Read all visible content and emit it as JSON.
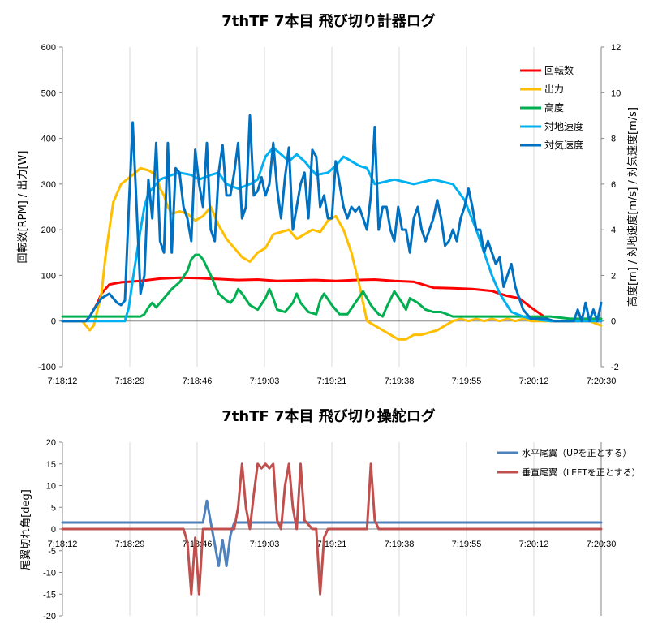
{
  "chart_data": [
    {
      "type": "line",
      "title": "7thTF 7本目 飛び切り計器ログ",
      "ylabel": "回転数[RPM] / 出力[W]",
      "y2label": "高度[m] / 対地速度[m/s] / 対気速度[m/s]",
      "xlabel": "",
      "x_ticks": [
        "7:18:12",
        "7:18:29",
        "7:18:46",
        "7:19:03",
        "7:19:21",
        "7:19:38",
        "7:19:55",
        "7:20:12",
        "7:20:30"
      ],
      "x_range_seconds": [
        0,
        138
      ],
      "ylim": [
        -100,
        600
      ],
      "y_ticks": [
        -100,
        0,
        100,
        200,
        300,
        400,
        500,
        600
      ],
      "y2lim": [
        -2,
        12
      ],
      "y2_ticks": [
        -2,
        0,
        2,
        4,
        6,
        8,
        10,
        12
      ],
      "grid": "vertical",
      "legend": "top-right",
      "series": [
        {
          "name": "回転数",
          "color": "#ff0000",
          "axis": "left",
          "x": [
            0,
            6,
            7,
            8,
            9,
            10,
            11,
            12,
            15,
            20,
            25,
            30,
            35,
            40,
            45,
            50,
            55,
            60,
            65,
            70,
            75,
            80,
            85,
            90,
            95,
            100,
            105,
            110,
            111,
            112,
            114,
            117,
            120,
            125,
            130,
            138
          ],
          "y": [
            0,
            0,
            10,
            25,
            40,
            60,
            70,
            80,
            85,
            88,
            93,
            95,
            94,
            92,
            90,
            91,
            88,
            89,
            90,
            88,
            90,
            91,
            88,
            86,
            73,
            72,
            70,
            66,
            63,
            60,
            55,
            50,
            30,
            0,
            0,
            0
          ]
        },
        {
          "name": "出力",
          "color": "#ffbf00",
          "axis": "left",
          "x": [
            0,
            5,
            6,
            7,
            8,
            10,
            11,
            12,
            13,
            15,
            18,
            20,
            22,
            24,
            25,
            26,
            27,
            28,
            30,
            32,
            34,
            36,
            38,
            40,
            42,
            44,
            46,
            48,
            50,
            52,
            54,
            56,
            58,
            60,
            62,
            64,
            66,
            68,
            70,
            72,
            74,
            76,
            78,
            80,
            82,
            84,
            86,
            88,
            90,
            92,
            94,
            96,
            98,
            100,
            102,
            104,
            106,
            108,
            110,
            112,
            114,
            116,
            118,
            120,
            125,
            130,
            135,
            138
          ],
          "y": [
            0,
            0,
            -10,
            -20,
            -10,
            60,
            140,
            200,
            260,
            300,
            320,
            335,
            330,
            320,
            290,
            275,
            250,
            235,
            240,
            235,
            220,
            230,
            250,
            210,
            180,
            160,
            140,
            130,
            150,
            160,
            190,
            195,
            200,
            180,
            190,
            200,
            195,
            220,
            230,
            200,
            150,
            80,
            0,
            -10,
            -20,
            -30,
            -40,
            -40,
            -30,
            -30,
            -25,
            -20,
            -10,
            0,
            5,
            0,
            5,
            0,
            5,
            0,
            5,
            0,
            5,
            0,
            0,
            0,
            0,
            -10
          ]
        },
        {
          "name": "高度",
          "color": "#00b050",
          "axis": "right",
          "x": [
            0,
            10,
            15,
            20,
            21,
            22,
            23,
            24,
            26,
            28,
            30,
            32,
            33,
            34,
            35,
            36,
            38,
            40,
            42,
            43,
            44,
            45,
            46,
            48,
            50,
            52,
            53,
            54,
            55,
            57,
            59,
            60,
            61,
            63,
            65,
            66,
            67,
            69,
            71,
            73,
            75,
            77,
            79,
            81,
            82,
            83,
            85,
            87,
            88,
            89,
            91,
            93,
            95,
            97,
            100,
            105,
            110,
            115,
            120,
            125,
            130,
            138
          ],
          "y": [
            0.2,
            0.2,
            0.2,
            0.2,
            0.3,
            0.6,
            0.8,
            0.6,
            1.0,
            1.4,
            1.7,
            2.2,
            2.7,
            2.9,
            2.9,
            2.7,
            2.0,
            1.2,
            0.9,
            0.8,
            1.0,
            1.4,
            1.2,
            0.7,
            0.5,
            1.0,
            1.4,
            1.0,
            0.5,
            0.4,
            0.8,
            1.2,
            0.8,
            0.4,
            0.3,
            0.9,
            1.2,
            0.7,
            0.3,
            0.3,
            0.8,
            1.3,
            0.7,
            0.3,
            0.2,
            0.6,
            1.3,
            0.8,
            0.5,
            1.0,
            0.8,
            0.5,
            0.4,
            0.4,
            0.2,
            0.2,
            0.2,
            0.2,
            0.2,
            0.2,
            0.1,
            0.1
          ]
        },
        {
          "name": "対地速度",
          "color": "#00b0f0",
          "axis": "right",
          "x": [
            0,
            14,
            16,
            17,
            18,
            20,
            21,
            22,
            25,
            28,
            30,
            33,
            35,
            38,
            40,
            42,
            45,
            48,
            50,
            52,
            54,
            56,
            58,
            60,
            62,
            65,
            68,
            70,
            72,
            74,
            76,
            78,
            80,
            85,
            90,
            95,
            100,
            103,
            106,
            108,
            110,
            112,
            115,
            118,
            120,
            125,
            130,
            138
          ],
          "y": [
            0,
            0,
            0,
            0.6,
            1.8,
            4.0,
            5.0,
            5.6,
            6.2,
            6.4,
            6.5,
            6.4,
            6.2,
            6.4,
            6.5,
            6.0,
            5.8,
            6.0,
            6.2,
            7.2,
            7.6,
            7.3,
            7.0,
            7.3,
            7.0,
            6.4,
            6.5,
            6.8,
            7.2,
            7.0,
            6.8,
            6.7,
            6.0,
            6.2,
            6.0,
            6.2,
            6.0,
            5.3,
            4.0,
            3.0,
            2.0,
            1.2,
            0.4,
            0.2,
            0.1,
            0,
            0,
            0
          ]
        },
        {
          "name": "対気速度",
          "color": "#0070c0",
          "axis": "right",
          "x": [
            0,
            6,
            7,
            8,
            10,
            12,
            13,
            14,
            15,
            16,
            17,
            18,
            19,
            20,
            21,
            22,
            23,
            24,
            25,
            26,
            27,
            28,
            29,
            30,
            31,
            32,
            33,
            34,
            35,
            36,
            37,
            38,
            39,
            40,
            41,
            42,
            43,
            44,
            45,
            46,
            47,
            48,
            49,
            50,
            51,
            52,
            53,
            54,
            55,
            56,
            57,
            58,
            59,
            60,
            61,
            62,
            63,
            64,
            65,
            66,
            67,
            68,
            69,
            70,
            71,
            72,
            73,
            74,
            75,
            76,
            77,
            78,
            79,
            80,
            81,
            82,
            83,
            84,
            85,
            86,
            87,
            88,
            89,
            90,
            91,
            92,
            93,
            94,
            95,
            96,
            97,
            98,
            99,
            100,
            101,
            102,
            103,
            104,
            105,
            106,
            107,
            108,
            109,
            110,
            111,
            112,
            113,
            114,
            115,
            116,
            117,
            118,
            120,
            122,
            124,
            126,
            128,
            130,
            131,
            132,
            133,
            134,
            135,
            136,
            137,
            138
          ],
          "y": [
            0,
            0,
            0.2,
            0.5,
            1.0,
            1.2,
            1.0,
            0.8,
            0.7,
            0.9,
            5.0,
            8.7,
            5.0,
            1.2,
            2.0,
            6.2,
            4.5,
            7.8,
            3.5,
            3.0,
            7.8,
            3.0,
            6.7,
            6.5,
            5.0,
            4.5,
            3.5,
            7.5,
            6.0,
            5.0,
            7.8,
            4.0,
            3.5,
            6.5,
            7.7,
            5.5,
            5.5,
            6.5,
            7.8,
            4.5,
            5.0,
            9.0,
            5.5,
            5.7,
            6.3,
            5.5,
            6.0,
            7.8,
            5.8,
            4.5,
            6.3,
            7.6,
            4.0,
            5.0,
            6.0,
            6.5,
            4.5,
            7.5,
            7.2,
            5.0,
            5.5,
            4.5,
            4.5,
            7.0,
            6.0,
            5.0,
            4.5,
            5.0,
            4.8,
            5.0,
            4.5,
            4.0,
            5.5,
            8.5,
            4.0,
            5.0,
            5.0,
            4.0,
            3.5,
            5.0,
            4.0,
            4.0,
            3.0,
            4.5,
            5.0,
            4.0,
            3.5,
            4.0,
            4.5,
            5.3,
            4.5,
            3.3,
            3.5,
            4.0,
            3.5,
            4.5,
            5.0,
            5.8,
            5.0,
            4.0,
            4.0,
            3.0,
            3.5,
            3.0,
            2.5,
            2.8,
            1.5,
            2.0,
            2.5,
            1.5,
            1.0,
            0.5,
            0.1,
            0.1,
            0.1,
            0,
            0,
            0,
            0,
            0.5,
            0,
            0.8,
            0,
            0.5,
            0,
            0.8
          ]
        }
      ]
    },
    {
      "type": "line",
      "title": "7thTF 7本目 飛び切り操舵ログ",
      "ylabel": "尾翼切れ角[deg]",
      "xlabel": "",
      "x_ticks": [
        "7:18:12",
        "7:18:29",
        "7:18:46",
        "7:19:03",
        "7:19:21",
        "7:19:38",
        "7:19:55",
        "7:20:12",
        "7:20:30"
      ],
      "x_range_seconds": [
        0,
        138
      ],
      "ylim": [
        -20,
        20
      ],
      "y_ticks": [
        -20,
        -15,
        -10,
        -5,
        0,
        5,
        10,
        15,
        20
      ],
      "grid": "vertical",
      "legend": "top-right",
      "series": [
        {
          "name": "水平尾翼（UPを正とする）",
          "color": "#4f81bd",
          "x": [
            0,
            35,
            36,
            37,
            38,
            39,
            40,
            41,
            42,
            43,
            44,
            138
          ],
          "y": [
            1.5,
            1.5,
            1.5,
            6.5,
            1.5,
            -3.5,
            -8.5,
            -2.5,
            -8.5,
            -1.5,
            1.5,
            1.5
          ]
        },
        {
          "name": "垂直尾翼（LEFTを正とする）",
          "color": "#c0504d",
          "x": [
            0,
            31,
            32,
            33,
            34,
            35,
            36,
            37,
            38,
            42,
            43,
            44,
            45,
            46,
            47,
            48,
            49,
            50,
            51,
            52,
            53,
            54,
            55,
            56,
            57,
            58,
            59,
            60,
            61,
            62,
            64,
            65,
            66,
            67,
            68,
            77,
            78,
            79,
            80,
            81,
            82,
            138
          ],
          "y": [
            0,
            0,
            -3,
            -15,
            -2,
            -15,
            0,
            0,
            0,
            0,
            0,
            0,
            5,
            15,
            5,
            0,
            8,
            15,
            14,
            15,
            14,
            15,
            2,
            0,
            10,
            15,
            5,
            0,
            15,
            2,
            0,
            0,
            -15,
            -2,
            0,
            0,
            0,
            15,
            2,
            0,
            0,
            0
          ]
        }
      ]
    }
  ]
}
